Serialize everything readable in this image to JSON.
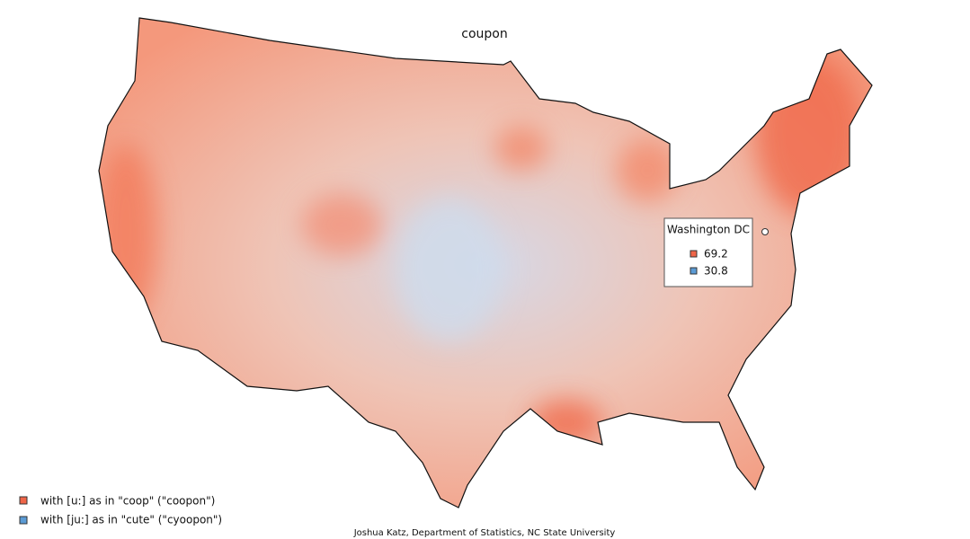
{
  "title": "coupon",
  "legend": [
    {
      "label": "with [u:] as in \"coop\" (\"coopon\")",
      "color": "#ef6548"
    },
    {
      "label": "with [ju:] as in \"cute\" (\"cyoopon\")",
      "color": "#5b9bd5"
    }
  ],
  "tooltip": {
    "location": "Washington DC",
    "values": [
      69.2,
      30.8
    ]
  },
  "credit": "Joshua Katz, Department of Statistics, NC State University"
}
